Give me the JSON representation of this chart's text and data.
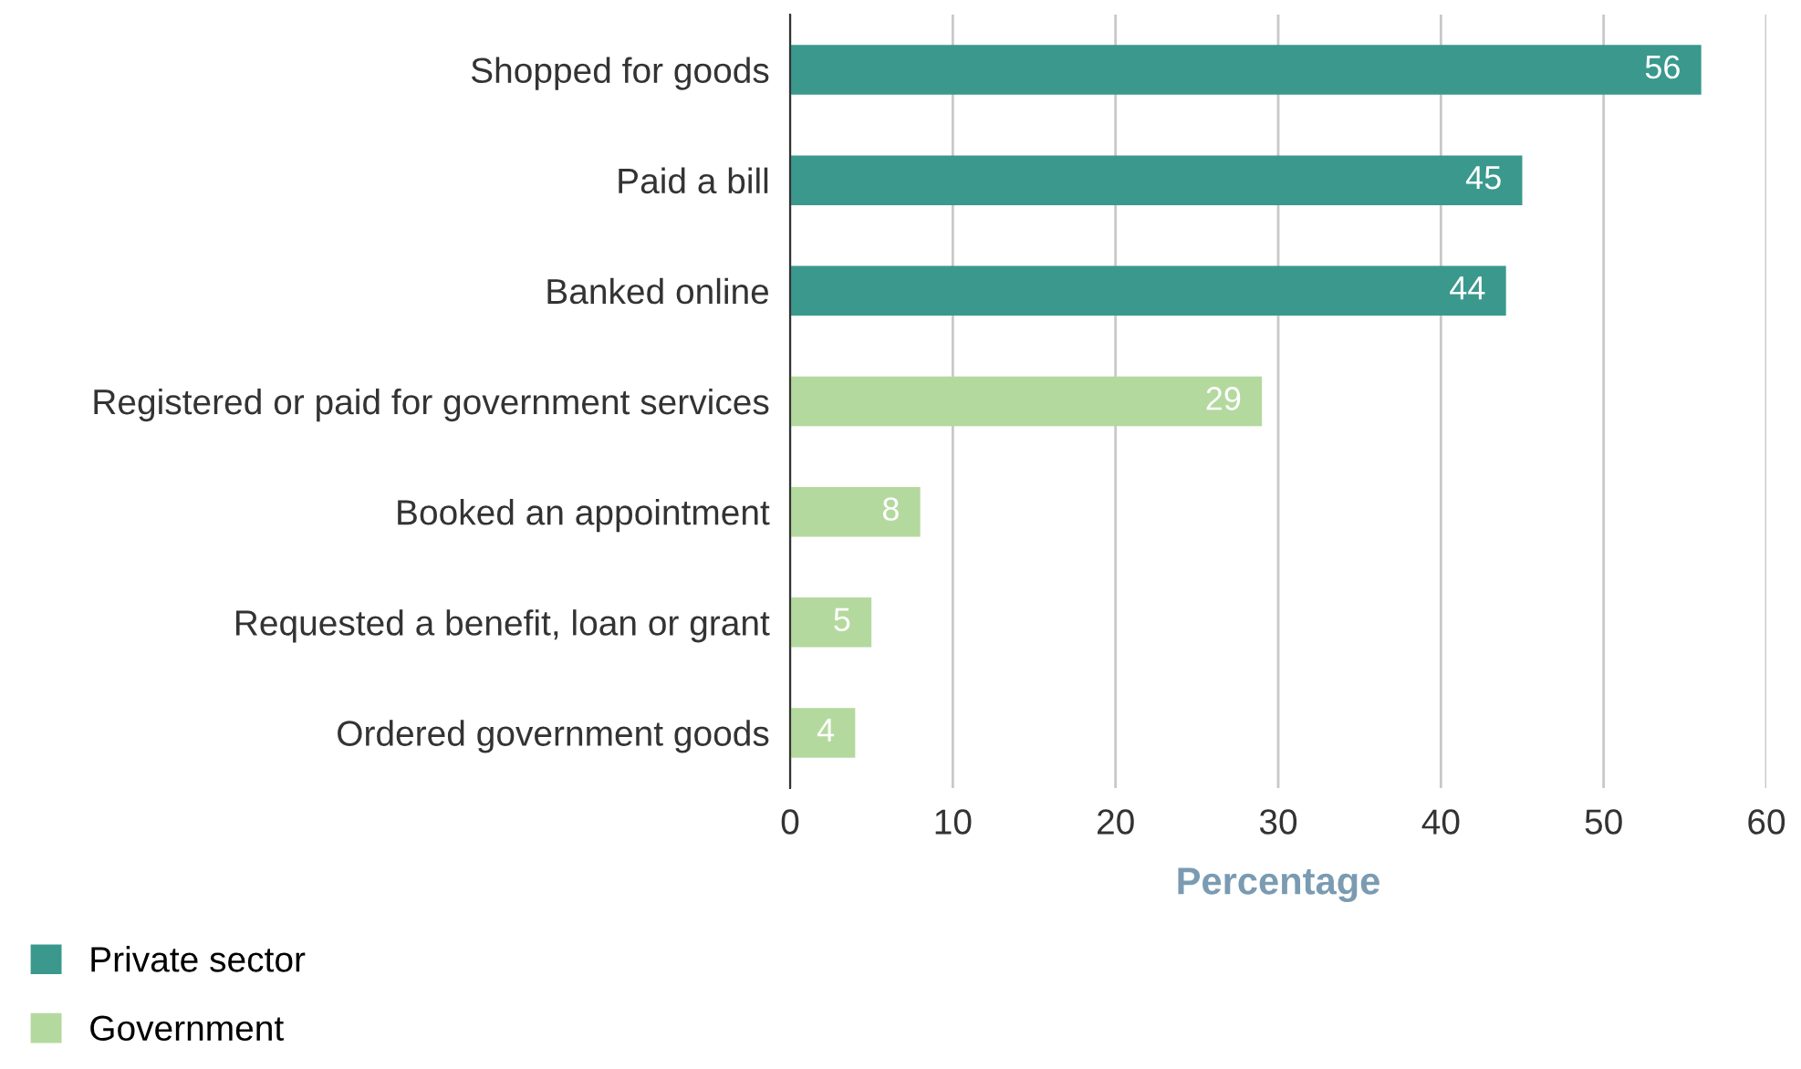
{
  "chart_data": {
    "type": "bar",
    "orientation": "horizontal",
    "xlabel": "Percentage",
    "categories": [
      "Shopped for goods",
      "Paid a bill",
      "Banked online",
      "Registered or paid for government services",
      "Booked an appointment",
      "Requested a benefit, loan or grant",
      "Ordered government goods"
    ],
    "series": [
      {
        "name": "Private sector",
        "color": "#3a998c",
        "values": [
          56,
          45,
          44,
          null,
          null,
          null,
          null
        ]
      },
      {
        "name": "Government",
        "color": "#b4d99e",
        "values": [
          null,
          null,
          null,
          29,
          8,
          5,
          4
        ]
      }
    ],
    "xlim": [
      0,
      60
    ],
    "xticks": [
      0,
      10,
      20,
      30,
      40,
      50,
      60
    ],
    "grid": "x",
    "legend": "bottom left",
    "data_labels": true
  }
}
